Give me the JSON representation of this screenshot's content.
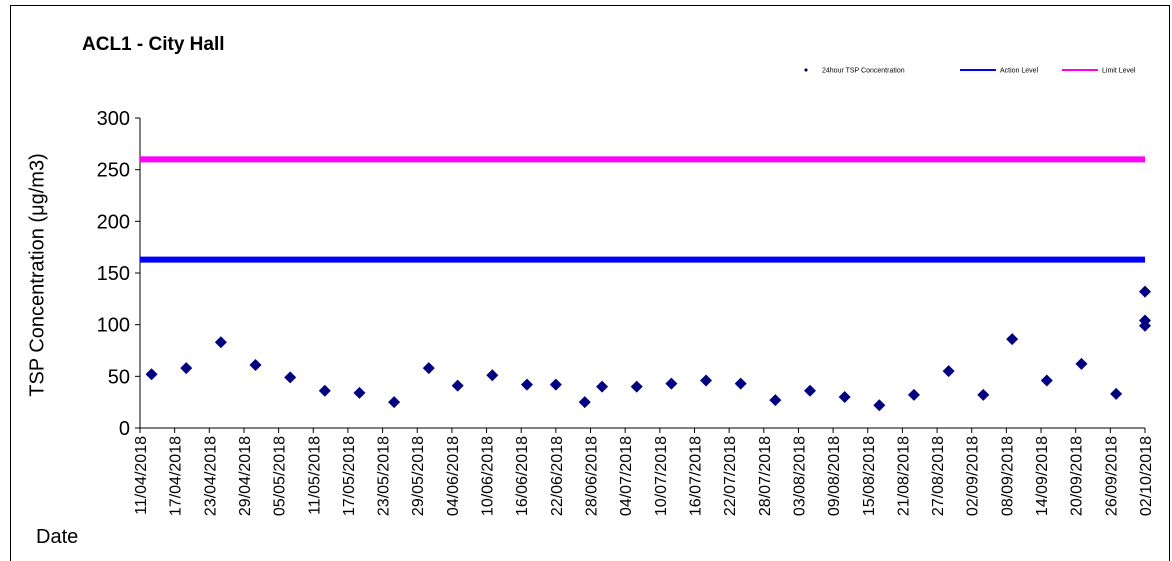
{
  "chart_data": {
    "type": "scatter",
    "title": "ACL1 - City Hall",
    "ylabel": "TSP Concentration (μg/m3)",
    "xlabel": "Date",
    "ylim": [
      0,
      300
    ],
    "yticks": [
      0,
      50,
      100,
      150,
      200,
      250,
      300
    ],
    "xlim": [
      "11/04/2018",
      "02/10/2018"
    ],
    "xticks": [
      "11/04/2018",
      "17/04/2018",
      "23/04/2018",
      "29/04/2018",
      "05/05/2018",
      "11/05/2018",
      "17/05/2018",
      "23/05/2018",
      "29/05/2018",
      "04/06/2018",
      "10/06/2018",
      "16/06/2018",
      "22/06/2018",
      "28/06/2018",
      "04/07/2018",
      "10/07/2018",
      "16/07/2018",
      "22/07/2018",
      "28/07/2018",
      "03/08/2018",
      "09/08/2018",
      "15/08/2018",
      "21/08/2018",
      "27/08/2018",
      "02/09/2018",
      "08/09/2018",
      "14/09/2018",
      "20/09/2018",
      "26/09/2018",
      "02/10/2018"
    ],
    "grid": false,
    "legend_position": "top-right",
    "series": [
      {
        "name": "24hour TSP Concentration",
        "marker": "diamond",
        "color": "#000080",
        "points": [
          {
            "x": "13/04/2018",
            "y": 52
          },
          {
            "x": "19/04/2018",
            "y": 58
          },
          {
            "x": "25/04/2018",
            "y": 83
          },
          {
            "x": "01/05/2018",
            "y": 61
          },
          {
            "x": "07/05/2018",
            "y": 49
          },
          {
            "x": "13/05/2018",
            "y": 36
          },
          {
            "x": "19/05/2018",
            "y": 34
          },
          {
            "x": "25/05/2018",
            "y": 25
          },
          {
            "x": "31/05/2018",
            "y": 58
          },
          {
            "x": "05/06/2018",
            "y": 41
          },
          {
            "x": "11/06/2018",
            "y": 51
          },
          {
            "x": "17/06/2018",
            "y": 42
          },
          {
            "x": "22/06/2018",
            "y": 42
          },
          {
            "x": "27/06/2018",
            "y": 25
          },
          {
            "x": "30/06/2018",
            "y": 40
          },
          {
            "x": "06/07/2018",
            "y": 40
          },
          {
            "x": "12/07/2018",
            "y": 43
          },
          {
            "x": "18/07/2018",
            "y": 46
          },
          {
            "x": "24/07/2018",
            "y": 43
          },
          {
            "x": "30/07/2018",
            "y": 27
          },
          {
            "x": "05/08/2018",
            "y": 36
          },
          {
            "x": "11/08/2018",
            "y": 30
          },
          {
            "x": "17/08/2018",
            "y": 22
          },
          {
            "x": "23/08/2018",
            "y": 32
          },
          {
            "x": "29/08/2018",
            "y": 55
          },
          {
            "x": "04/09/2018",
            "y": 32
          },
          {
            "x": "09/09/2018",
            "y": 86
          },
          {
            "x": "15/09/2018",
            "y": 46
          },
          {
            "x": "21/09/2018",
            "y": 62
          },
          {
            "x": "27/09/2018",
            "y": 33
          },
          {
            "x": "02/10/2018",
            "y": 132
          },
          {
            "x": "02/10/2018",
            "y": 104
          },
          {
            "x": "02/10/2018",
            "y": 99
          }
        ]
      },
      {
        "name": "Action Level",
        "type": "hline",
        "value": 163,
        "color": "#0000FF"
      },
      {
        "name": "Limit Level",
        "type": "hline",
        "value": 260,
        "color": "#FF00FF"
      }
    ]
  }
}
